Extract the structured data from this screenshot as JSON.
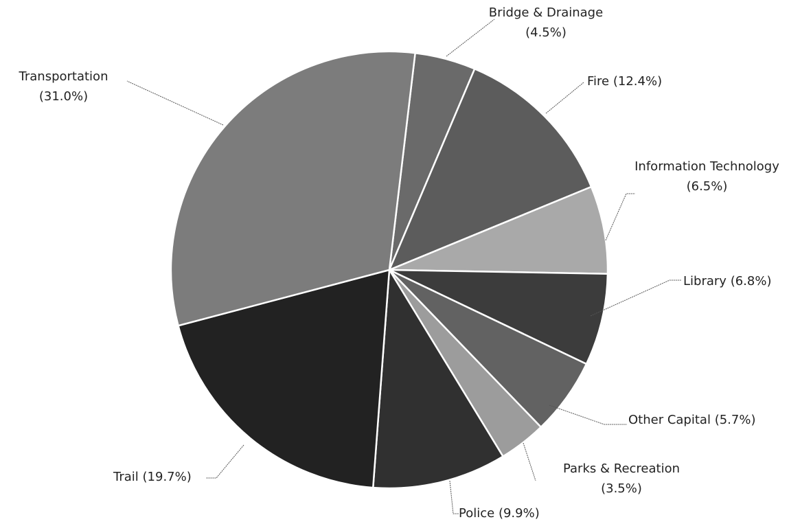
{
  "chart_data": {
    "type": "pie",
    "categories": [
      "Bridge & Drainage",
      "Fire",
      "Information Technology",
      "Library",
      "Other Capital",
      "Parks & Recreation",
      "Police",
      "Trail",
      "Transportation"
    ],
    "values": [
      4.5,
      12.4,
      6.5,
      6.8,
      5.7,
      3.5,
      9.9,
      19.7,
      31.0
    ],
    "value_labels": [
      "(4.5%)",
      "(12.4%)",
      "(6.5%)",
      "(6.8%)",
      "(5.7%)",
      "(3.5%)",
      "(9.9%)",
      "(19.7%)",
      "(31.0%)"
    ],
    "colors": [
      "#6a6a6a",
      "#5c5c5c",
      "#a9a9a9",
      "#3c3c3c",
      "#626262",
      "#9c9c9c",
      "#303030",
      "#222222",
      "#7c7c7c"
    ]
  }
}
